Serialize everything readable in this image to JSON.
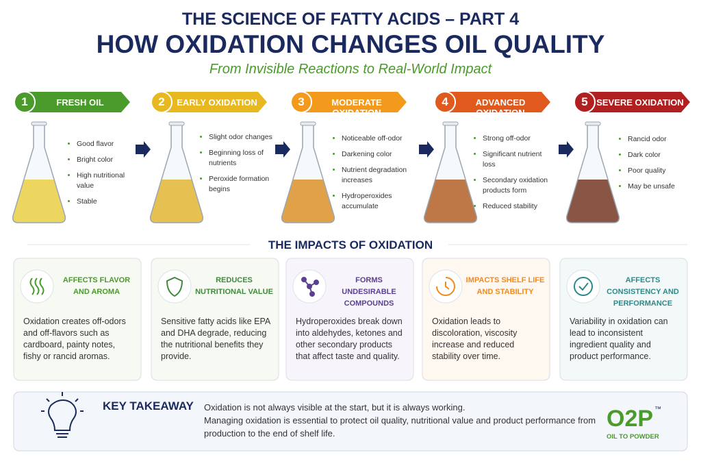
{
  "header": {
    "series_title": "THE SCIENCE OF FATTY ACIDS – PART 4",
    "title": "HOW OXIDATION CHANGES OIL QUALITY",
    "subtitle": "From Invisible Reactions to Real-World Impact"
  },
  "stages": [
    {
      "number": 1,
      "label": "FRESH OIL",
      "points": [
        "Good flavor",
        "Bright color",
        "High nutritional value",
        "Stable"
      ]
    },
    {
      "number": 2,
      "label": "EARLY OXIDATION",
      "points": [
        "Slight odor changes",
        "Beginning loss of nutrients",
        "Peroxide formation begins"
      ]
    },
    {
      "number": 3,
      "label": "MODERATE OXIDATION",
      "points": [
        "Noticeable off-odor",
        "Darkening color",
        "Nutrient degradation increases",
        "Hydroperoxides accumulate"
      ]
    },
    {
      "number": 4,
      "label": "ADVANCED OXIDATION",
      "points": [
        "Strong off-odor",
        "Significant nutrient loss",
        "Secondary oxidation products form",
        "Reduced stability"
      ]
    },
    {
      "number": 5,
      "label": "SEVERE OXIDATION",
      "points": [
        "Rancid odor",
        "Dark color",
        "Poor quality",
        "May be unsafe"
      ]
    }
  ],
  "impacts": {
    "title": "THE IMPACTS OF OXIDATION",
    "cards": [
      {
        "title": "AFFECTS FLAVOR AND AROMA",
        "text": "Oxidation creates off-odors and off-flavors such as cardboard, painty notes, fishy or rancid aromas."
      },
      {
        "title": "REDUCES NUTRITIONAL VALUE",
        "text": "Sensitive fatty acids like EPA and DHA degrade, reducing the nutritional benefits they provide."
      },
      {
        "title": "FORMS UNDESIRABLE COMPOUNDS",
        "text": "Hydroperoxides break down into aldehydes, ketones and other secondary products that affect taste and quality."
      },
      {
        "title": "IMPACTS SHELF LIFE AND STABILITY",
        "text": "Oxidation leads to discoloration, viscosity increase and reduced stability over time."
      },
      {
        "title": "AFFECTS CONSISTENCY AND PERFORMANCE",
        "text": "Variability in oxidation can lead to inconsistent ingredient quality and product performance."
      }
    ]
  },
  "takeaway": {
    "title": "KEY TAKEAWAY",
    "lines": [
      "Oxidation is not always visible at the start, but it is always working.",
      "Managing oxidation is essential to protect oil quality, nutritional value and product performance from production to the end of shelf life."
    ]
  },
  "logo": {
    "mark": "O2P",
    "trademark": "™",
    "tagline": "OIL TO POWDER"
  }
}
